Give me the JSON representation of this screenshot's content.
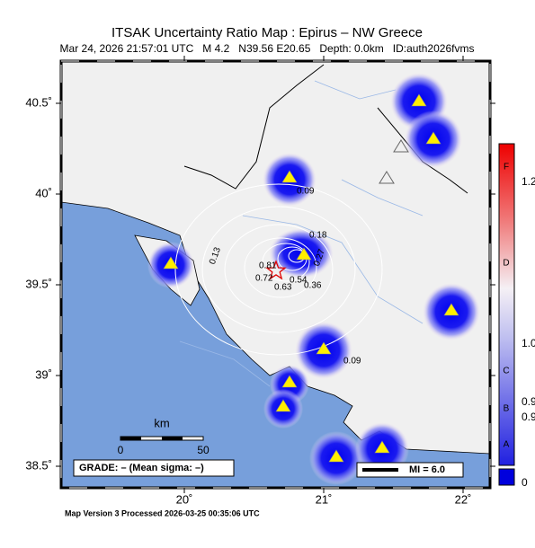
{
  "header": {
    "title": "ITSAK Uncertainty Ratio Map : Epirus – NW Greece",
    "subtitle": "Mar 24, 2026 21:57:01 UTC   M 4.2   N39.56 E20.65   Depth: 0.0km   ID:auth2026fvms"
  },
  "map": {
    "lat_ticks": [
      {
        "value": 40.5,
        "label": "40.5˚"
      },
      {
        "value": 40,
        "label": "40˚"
      },
      {
        "value": 39.5,
        "label": "39.5˚"
      },
      {
        "value": 39,
        "label": "39˚"
      },
      {
        "value": 38.5,
        "label": "38.5˚"
      }
    ],
    "lon_ticks": [
      {
        "value": 20,
        "label": "20˚"
      },
      {
        "value": 21,
        "label": "21˚"
      },
      {
        "value": 22,
        "label": "22˚"
      }
    ],
    "contour_labels": [
      "0.09",
      "0.18",
      "0.13",
      "0.81",
      "0.72",
      "0.63",
      "0.54",
      "0.36",
      "0.27",
      "0.09"
    ]
  },
  "scale_bar": {
    "unit": "km",
    "labels": [
      "0",
      "50"
    ]
  },
  "grade": "GRADE: – (Mean sigma: –)",
  "legend": {
    "mi": "MI = 6.0"
  },
  "colorbar": {
    "grades": [
      "F",
      "D",
      "C",
      "B",
      "A"
    ],
    "labels": [
      "1.2",
      "1.0",
      "0.9",
      "0.9",
      "0"
    ]
  },
  "footer": "Map Version 3 Processed 2026-03-25 00:35:06 UTC"
}
